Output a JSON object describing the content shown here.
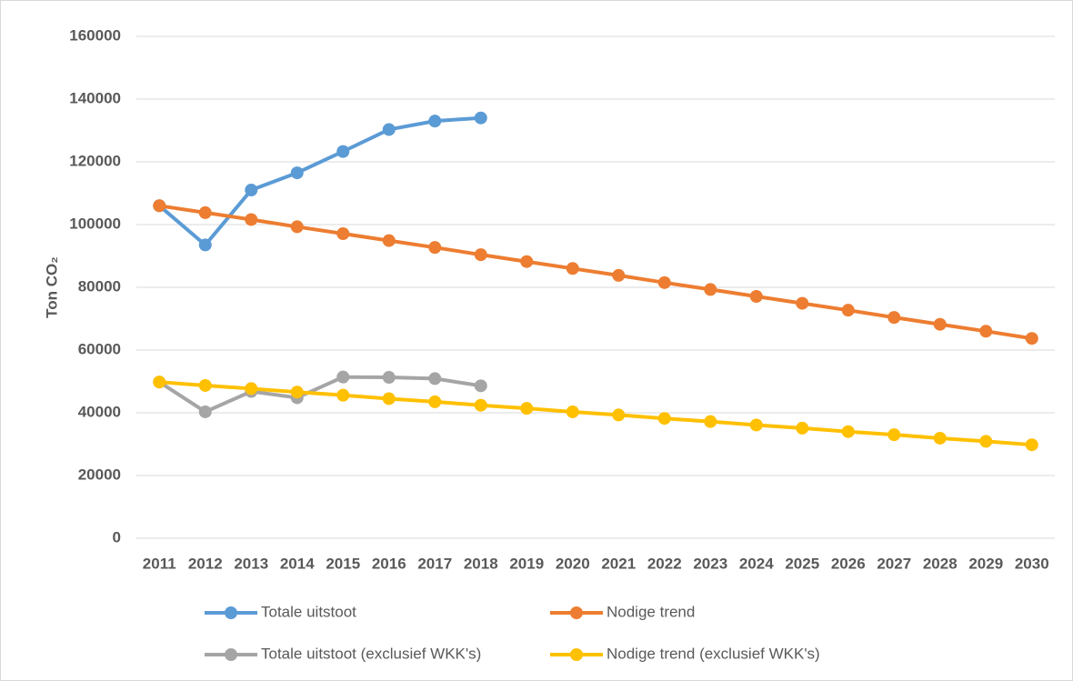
{
  "chart_data": {
    "type": "line",
    "y_label": "Ton CO₂",
    "categories": [
      "2011",
      "2012",
      "2013",
      "2014",
      "2015",
      "2016",
      "2017",
      "2018",
      "2019",
      "2020",
      "2021",
      "2022",
      "2023",
      "2024",
      "2025",
      "2026",
      "2027",
      "2028",
      "2029",
      "2030"
    ],
    "series": [
      {
        "name": "Totale uitstoot",
        "color": "#5b9bd5",
        "values": [
          106000,
          93500,
          111000,
          116500,
          123300,
          130300,
          133000,
          134000,
          null,
          null,
          null,
          null,
          null,
          null,
          null,
          null,
          null,
          null,
          null,
          null
        ]
      },
      {
        "name": "Nodige trend",
        "color": "#ed7d31",
        "values": [
          106000,
          103800,
          101600,
          99300,
          97100,
          94900,
          92700,
          90400,
          88200,
          86000,
          83800,
          81500,
          79300,
          77100,
          74900,
          72700,
          70400,
          68200,
          66000,
          63700
        ]
      },
      {
        "name": "Totale uitstoot (exclusief WKK's)",
        "color": "#a5a5a5",
        "values": [
          49800,
          40300,
          46800,
          44800,
          51400,
          51300,
          50900,
          48600,
          null,
          null,
          null,
          null,
          null,
          null,
          null,
          null,
          null,
          null,
          null,
          null
        ]
      },
      {
        "name": "Nodige trend (exclusief WKK's)",
        "color": "#ffc000",
        "values": [
          49800,
          48700,
          47700,
          46600,
          45600,
          44500,
          43500,
          42400,
          41400,
          40300,
          39300,
          38200,
          37200,
          36100,
          35100,
          34000,
          33000,
          31900,
          30900,
          29800
        ]
      }
    ],
    "ylim": [
      0,
      160000
    ],
    "yticks": [
      0,
      20000,
      40000,
      60000,
      80000,
      100000,
      120000,
      140000,
      160000
    ],
    "grid": true,
    "legend": "bottom"
  }
}
